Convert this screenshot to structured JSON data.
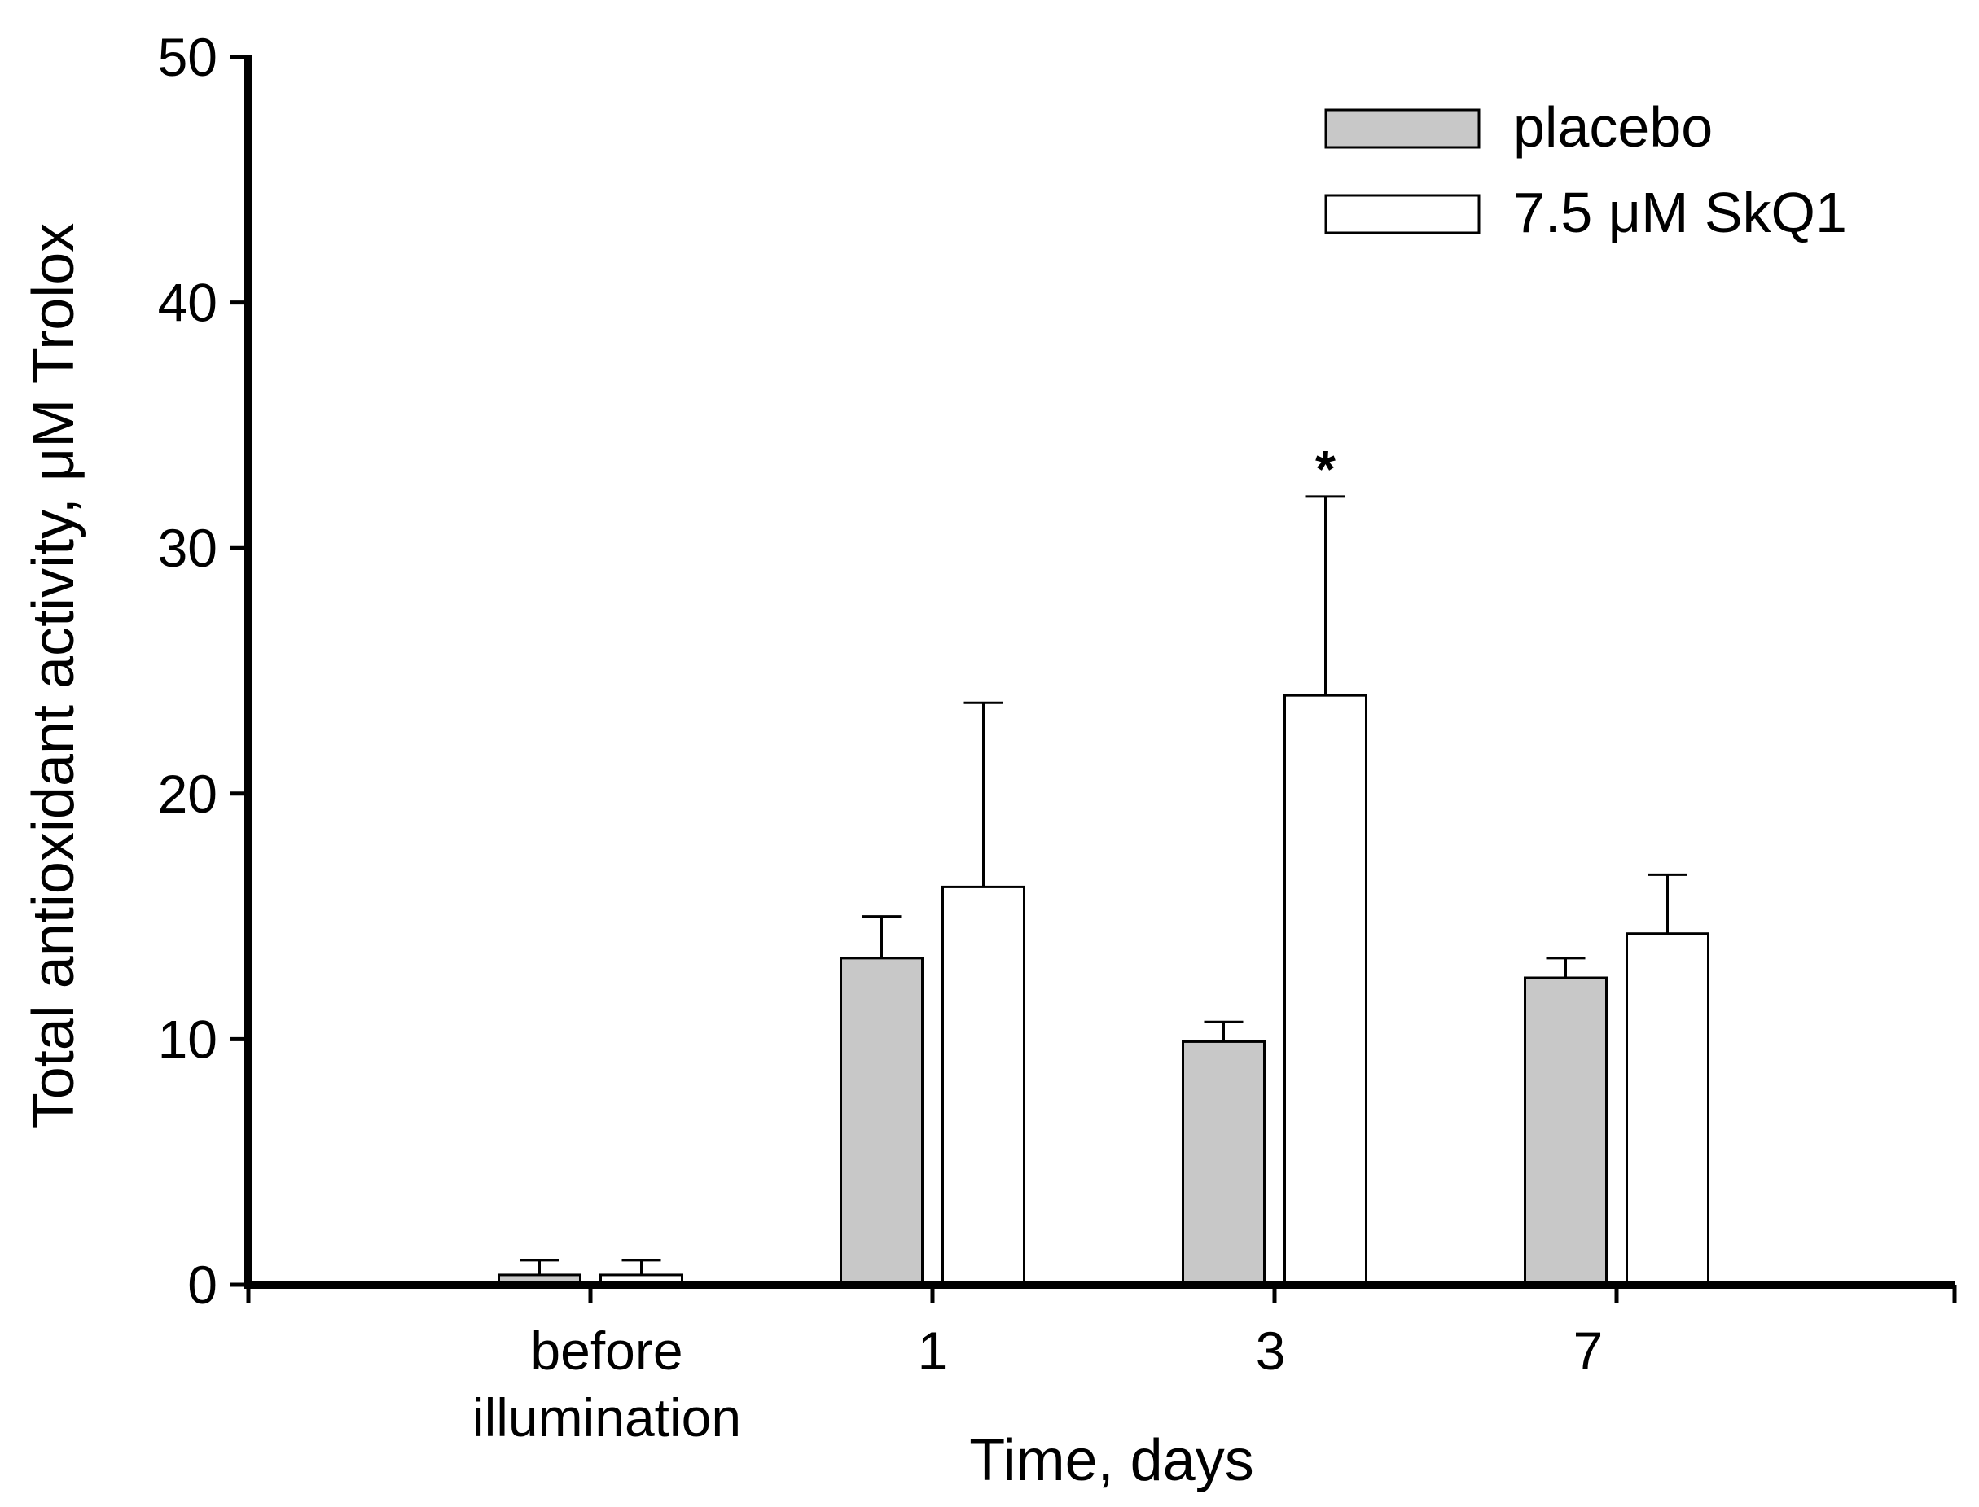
{
  "chart_data": {
    "type": "bar",
    "title": "",
    "xlabel": "Time, days",
    "ylabel": "Total antioxidant activity, μM Trolox",
    "ylim": [
      0,
      50
    ],
    "yticks": [
      "0",
      "10",
      "20",
      "30",
      "40",
      "50"
    ],
    "categories": [
      {
        "lines": [
          "before",
          "illumination"
        ]
      },
      {
        "lines": [
          "1"
        ]
      },
      {
        "lines": [
          "3"
        ]
      },
      {
        "lines": [
          "7"
        ]
      }
    ],
    "series": [
      {
        "name": "placebo",
        "color": "#c8c8c8",
        "values": [
          0.4,
          13.3,
          9.9,
          12.5
        ],
        "errors": [
          0.6,
          1.7,
          0.8,
          0.8
        ]
      },
      {
        "name": "7.5 μM SkQ1",
        "color": "#ffffff",
        "values": [
          0.4,
          16.2,
          24.0,
          14.3
        ],
        "errors": [
          0.6,
          7.5,
          8.1,
          2.4
        ]
      }
    ],
    "annotations": [
      {
        "text": "*",
        "category_index": 2,
        "series_index": 1
      }
    ],
    "legend": {
      "position": "top-right"
    },
    "grid": false
  }
}
